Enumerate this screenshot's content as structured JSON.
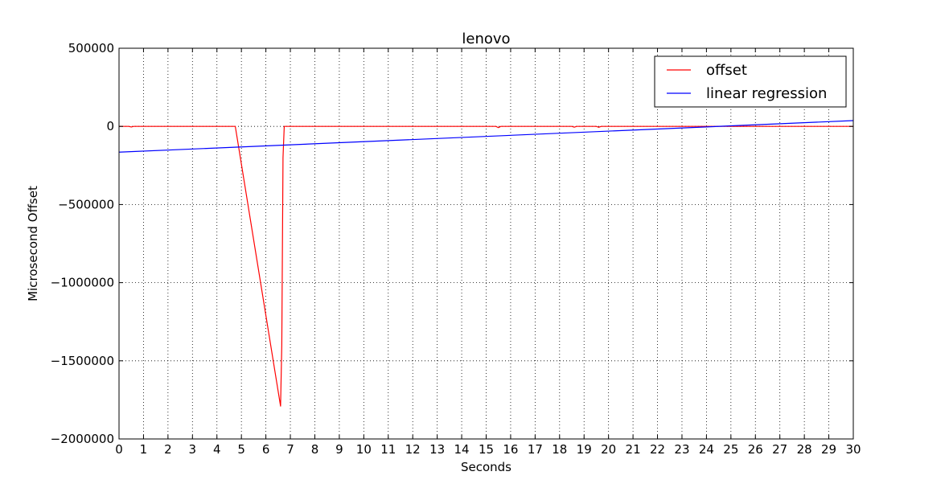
{
  "chart_data": {
    "type": "line",
    "title": "lenovo",
    "xlabel": "Seconds",
    "ylabel": "Microsecond Offset",
    "xlim": [
      0,
      30
    ],
    "ylim": [
      -2000000,
      500000
    ],
    "xticks": [
      0,
      1,
      2,
      3,
      4,
      5,
      6,
      7,
      8,
      9,
      10,
      11,
      12,
      13,
      14,
      15,
      16,
      17,
      18,
      19,
      20,
      21,
      22,
      23,
      24,
      25,
      26,
      27,
      28,
      29,
      30
    ],
    "xtick_labels": [
      "0",
      "1",
      "2",
      "3",
      "4",
      "5",
      "6",
      "7",
      "8",
      "9",
      "10",
      "11",
      "12",
      "13",
      "14",
      "15",
      "16",
      "17",
      "18",
      "19",
      "20",
      "21",
      "22",
      "23",
      "24",
      "25",
      "26",
      "27",
      "28",
      "29",
      "30"
    ],
    "yticks": [
      500000,
      0,
      -500000,
      -1000000,
      -1500000,
      -2000000
    ],
    "ytick_labels": [
      "500000",
      "0",
      "−500000",
      "−1000000",
      "−1500000",
      "−2000000"
    ],
    "grid": true,
    "legend_position": "top-right",
    "series": [
      {
        "name": "offset",
        "color": "#ff0000",
        "x": [
          0,
          0.4,
          0.5,
          0.6,
          1.0,
          2.0,
          3.0,
          4.0,
          4.7,
          4.75,
          6.6,
          6.65,
          6.7,
          6.75,
          7.0,
          8,
          9,
          10,
          11,
          12,
          13,
          14,
          15,
          15.4,
          15.5,
          15.6,
          16,
          17,
          18,
          18.5,
          18.6,
          18.7,
          19,
          19.5,
          19.6,
          19.7,
          20,
          21,
          22,
          23,
          24,
          25,
          26,
          27,
          28,
          29,
          30
        ],
        "y": [
          0,
          0,
          -4000,
          0,
          0,
          0,
          0,
          0,
          0,
          0,
          -1790000,
          -1400000,
          -200000,
          0,
          0,
          0,
          0,
          0,
          0,
          0,
          0,
          0,
          0,
          0,
          -8000,
          0,
          0,
          0,
          0,
          0,
          -5000,
          0,
          0,
          0,
          -6000,
          0,
          0,
          0,
          0,
          0,
          0,
          0,
          0,
          0,
          0,
          0,
          0
        ]
      },
      {
        "name": "linear regression",
        "color": "#0000ff",
        "x": [
          0,
          30
        ],
        "y": [
          -165000,
          37000
        ]
      }
    ]
  }
}
